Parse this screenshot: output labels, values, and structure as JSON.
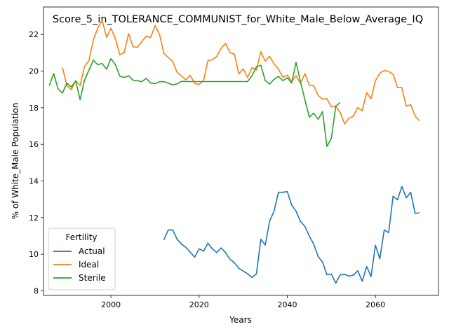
{
  "chart_data": {
    "type": "line",
    "title": "Score_5_in_TOLERANCE_COMMUNIST_for_White_Male_Below_Average_IQ",
    "xlabel": "Years",
    "ylabel": "% of White_Male Population",
    "xlim": [
      1984.7,
      2074.3
    ],
    "ylim": [
      7.75,
      23.5
    ],
    "xticks": [
      2000,
      2020,
      2040,
      2060
    ],
    "yticks": [
      8,
      10,
      12,
      14,
      16,
      18,
      20,
      22
    ],
    "grid": false,
    "legend": {
      "title": "Fertility",
      "placement": "lower-left"
    },
    "series": [
      {
        "name": "Actual",
        "color": "#1f77b4",
        "x": [
          2012,
          2013,
          2014,
          2015,
          2016,
          2017,
          2018,
          2019,
          2020,
          2021,
          2022,
          2023,
          2024,
          2025,
          2026,
          2027,
          2028,
          2029,
          2030,
          2031,
          2032,
          2033,
          2034,
          2035,
          2036,
          2037,
          2038,
          2039,
          2040,
          2041,
          2042,
          2043,
          2044,
          2045,
          2046,
          2047,
          2048,
          2049,
          2050,
          2051,
          2052,
          2053,
          2054,
          2055,
          2056,
          2057,
          2058,
          2059,
          2060,
          2061,
          2062,
          2063,
          2064,
          2065,
          2066,
          2067,
          2068,
          2069,
          2070
        ],
        "y": [
          10.78,
          11.32,
          11.33,
          10.82,
          10.55,
          10.37,
          10.11,
          9.84,
          10.3,
          10.17,
          10.6,
          10.29,
          10.09,
          10.34,
          10.09,
          9.72,
          9.54,
          9.23,
          9.08,
          8.93,
          8.73,
          8.93,
          10.82,
          10.5,
          11.8,
          12.35,
          13.38,
          13.38,
          13.42,
          12.68,
          12.35,
          11.79,
          11.52,
          10.99,
          10.55,
          9.87,
          9.57,
          8.88,
          8.92,
          8.42,
          8.87,
          8.9,
          8.8,
          8.86,
          9.1,
          8.52,
          9.33,
          8.78,
          10.49,
          9.74,
          11.33,
          11.18,
          13.17,
          12.97,
          13.7,
          13.08,
          13.38,
          12.23,
          12.26
        ]
      },
      {
        "name": "Ideal",
        "color": "#ff7f0e",
        "x": [
          1989,
          1990,
          1991,
          1992,
          1993,
          1994,
          1995,
          1996,
          1997,
          1998,
          1999,
          2000,
          2001,
          2002,
          2003,
          2004,
          2005,
          2006,
          2007,
          2008,
          2009,
          2010,
          2011,
          2012,
          2013,
          2014,
          2015,
          2016,
          2017,
          2018,
          2019,
          2020,
          2021,
          2022,
          2023,
          2024,
          2025,
          2026,
          2027,
          2028,
          2029,
          2030,
          2031,
          2032,
          2033,
          2034,
          2035,
          2036,
          2037,
          2038,
          2039,
          2040,
          2041,
          2042,
          2043,
          2044,
          2045,
          2046,
          2047,
          2048,
          2049,
          2050,
          2051,
          2052,
          2053,
          2054,
          2055,
          2056,
          2057,
          2058,
          2059,
          2060,
          2061,
          2062,
          2063,
          2064,
          2065,
          2066,
          2067,
          2068,
          2069,
          2070
        ],
        "y": [
          20.2,
          19.21,
          18.98,
          19.47,
          19.22,
          20.25,
          20.56,
          21.69,
          22.35,
          22.78,
          21.85,
          22.34,
          21.78,
          20.89,
          21.01,
          22.05,
          21.33,
          21.3,
          21.61,
          21.91,
          21.83,
          22.49,
          22.02,
          20.98,
          20.74,
          20.53,
          19.93,
          19.73,
          19.52,
          19.77,
          19.33,
          19.27,
          19.48,
          20.58,
          20.62,
          20.8,
          21.24,
          21.52,
          21.0,
          20.93,
          19.84,
          20.13,
          19.65,
          20.19,
          20.06,
          21.06,
          20.54,
          20.81,
          20.4,
          20.11,
          19.66,
          19.78,
          19.45,
          19.75,
          19.34,
          19.86,
          19.23,
          19.19,
          18.67,
          18.47,
          18.49,
          18.05,
          18.1,
          17.74,
          17.12,
          17.42,
          17.54,
          18.01,
          17.83,
          18.82,
          18.49,
          19.47,
          19.88,
          20.04,
          19.98,
          19.82,
          19.1,
          19.1,
          18.08,
          18.17,
          17.55,
          17.28
        ]
      },
      {
        "name": "Sterile",
        "color": "#2ca02c",
        "x": [
          1986,
          1987,
          1988,
          1989,
          1990,
          1991,
          1992,
          1993,
          1994,
          1995,
          1996,
          1997,
          1998,
          1999,
          2000,
          2001,
          2002,
          2003,
          2004,
          2005,
          2006,
          2007,
          2008,
          2009,
          2010,
          2011,
          2012,
          2013,
          2014,
          2015,
          2016,
          2017,
          2018,
          2019,
          2020,
          2021,
          2022,
          2023,
          2024,
          2025,
          2026,
          2027,
          2028,
          2029,
          2030,
          2031,
          2032,
          2033,
          2034,
          2035,
          2036,
          2037,
          2038,
          2039,
          2040,
          2041,
          2042,
          2043,
          2044,
          2045,
          2046,
          2047,
          2048,
          2049,
          2050,
          2051,
          2052
        ],
        "y": [
          19.2,
          19.87,
          19.03,
          18.8,
          19.35,
          19.13,
          19.47,
          18.43,
          19.5,
          20.04,
          20.6,
          20.35,
          20.42,
          20.1,
          20.68,
          20.36,
          19.73,
          19.65,
          19.75,
          19.5,
          19.48,
          19.42,
          19.61,
          19.35,
          19.31,
          19.42,
          19.43,
          19.34,
          19.25,
          19.3,
          19.44,
          19.43,
          19.43,
          19.43,
          19.43,
          19.43,
          19.43,
          19.43,
          19.43,
          19.43,
          19.43,
          19.43,
          19.43,
          19.43,
          19.43,
          19.43,
          19.75,
          20.24,
          20.32,
          19.48,
          19.29,
          19.55,
          19.71,
          19.48,
          19.63,
          19.35,
          20.48,
          19.41,
          18.44,
          17.49,
          17.7,
          17.36,
          17.79,
          15.88,
          16.32,
          18.08,
          18.28
        ]
      }
    ]
  }
}
